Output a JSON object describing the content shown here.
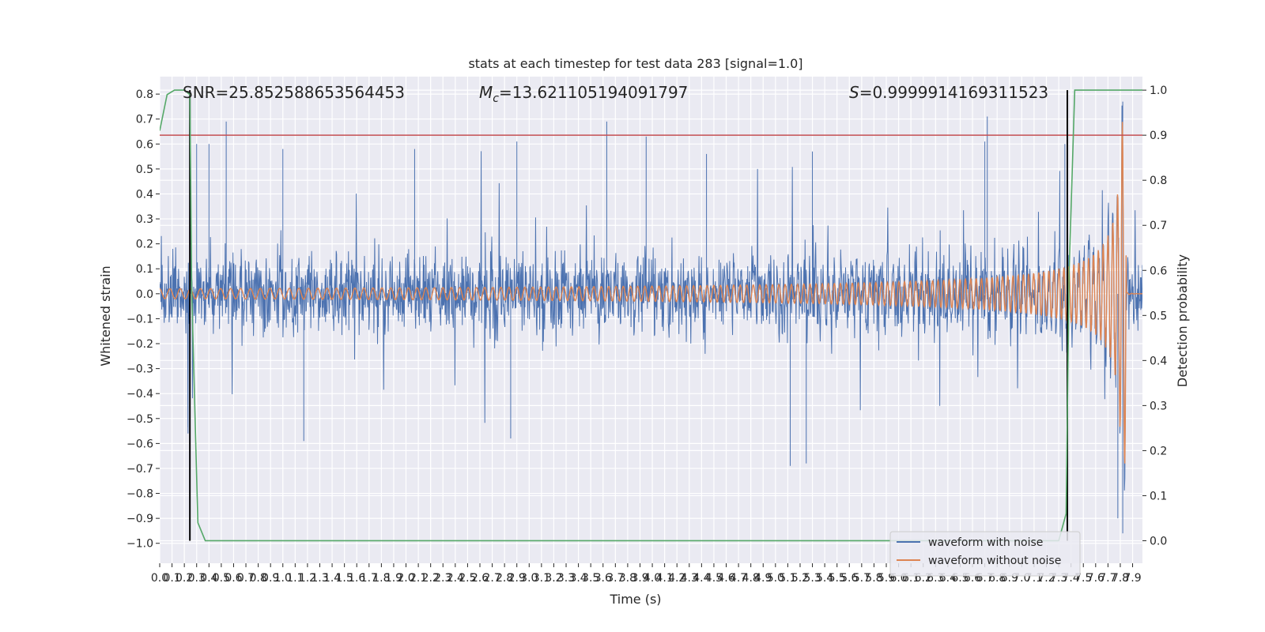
{
  "chart_data": {
    "type": "line",
    "title": "stats at each timestep for test data 283 [signal=1.0]",
    "xlabel": "Time (s)",
    "ylabel": "Whitened strain",
    "y2label": "Detection probability",
    "xlim": [
      0.0,
      7.98
    ],
    "ylim": [
      -1.08,
      0.87
    ],
    "y2lim": [
      -0.05,
      1.03
    ],
    "yticks": [
      -1.0,
      -0.9,
      -0.8,
      -0.7,
      -0.6,
      -0.5,
      -0.4,
      -0.3,
      -0.2,
      -0.1,
      0.0,
      0.1,
      0.2,
      0.3,
      0.4,
      0.5,
      0.6,
      0.7,
      0.8
    ],
    "ytick_labels": [
      "−1.0",
      "−0.9",
      "−0.8",
      "−0.7",
      "−0.6",
      "−0.5",
      "−0.4",
      "−0.3",
      "−0.2",
      "−0.1",
      "0.0",
      "0.1",
      "0.2",
      "0.3",
      "0.4",
      "0.5",
      "0.6",
      "0.7",
      "0.8"
    ],
    "y2ticks": [
      0.0,
      0.1,
      0.2,
      0.3,
      0.4,
      0.5,
      0.6,
      0.7,
      0.8,
      0.9,
      1.0
    ],
    "y2tick_labels": [
      "0.0",
      "0.1",
      "0.2",
      "0.3",
      "0.4",
      "0.5",
      "0.6",
      "0.7",
      "0.8",
      "0.9",
      "1.0"
    ],
    "xtick_step": 0.1,
    "xtick_count": 80,
    "grid": true,
    "legend_position": "bottom-right",
    "annotations": {
      "snr": "SNR=25.852588653564453",
      "mc_symbol": "M",
      "mc_sub": "c",
      "mc_value": "=13.621105194091797",
      "s_symbol": "S",
      "s_value": "=0.9999914169311523"
    },
    "threshold_line": {
      "y2": 0.9,
      "color": "#c44e52"
    },
    "vertical_lines": [
      {
        "x": 0.245,
        "y2_from": 0.0,
        "y2_to": 1.0,
        "color": "#000000"
      },
      {
        "x": 7.37,
        "y2_from": 0.0,
        "y2_to": 1.0,
        "color": "#000000"
      }
    ],
    "series": [
      {
        "name": "waveform with noise",
        "color": "#4c72b0",
        "axis": "left",
        "description_values": {
          "typical_amplitude": 0.3,
          "peak_max": 0.77,
          "peak_min": -1.0
        },
        "spikes": [
          [
            0.25,
            0.49
          ],
          [
            0.3,
            0.6
          ],
          [
            0.4,
            0.6
          ],
          [
            0.54,
            0.69
          ],
          [
            1.0,
            0.58
          ],
          [
            2.07,
            0.58
          ],
          [
            2.9,
            0.61
          ],
          [
            3.63,
            0.69
          ],
          [
            3.95,
            0.63
          ],
          [
            4.44,
            0.56
          ],
          [
            5.3,
            0.57
          ],
          [
            6.7,
            0.61
          ],
          [
            6.72,
            0.71
          ],
          [
            7.35,
            0.6
          ],
          [
            7.82,
            0.77
          ],
          [
            0.23,
            -0.56
          ],
          [
            1.17,
            -0.59
          ],
          [
            2.85,
            -0.58
          ],
          [
            5.12,
            -0.69
          ],
          [
            5.25,
            -0.68
          ],
          [
            7.78,
            -0.9
          ],
          [
            7.82,
            -0.96
          ]
        ]
      },
      {
        "name": "waveform without noise",
        "color": "#dd8452",
        "axis": "left",
        "description_values": {
          "start_amplitude": 0.02,
          "merger_time": 7.83,
          "peak_max": 0.69,
          "peak_min": -0.77
        }
      },
      {
        "name": "detection probability",
        "color": "#55a868",
        "axis": "right",
        "points": [
          [
            0.0,
            0.91
          ],
          [
            0.06,
            0.99
          ],
          [
            0.12,
            1.0
          ],
          [
            0.2,
            1.0
          ],
          [
            0.245,
            0.99
          ],
          [
            0.26,
            0.55
          ],
          [
            0.31,
            0.04
          ],
          [
            0.37,
            0.0
          ],
          [
            7.3,
            0.0
          ],
          [
            7.36,
            0.06
          ],
          [
            7.385,
            0.6
          ],
          [
            7.43,
            1.0
          ],
          [
            7.98,
            1.0
          ]
        ]
      }
    ]
  }
}
